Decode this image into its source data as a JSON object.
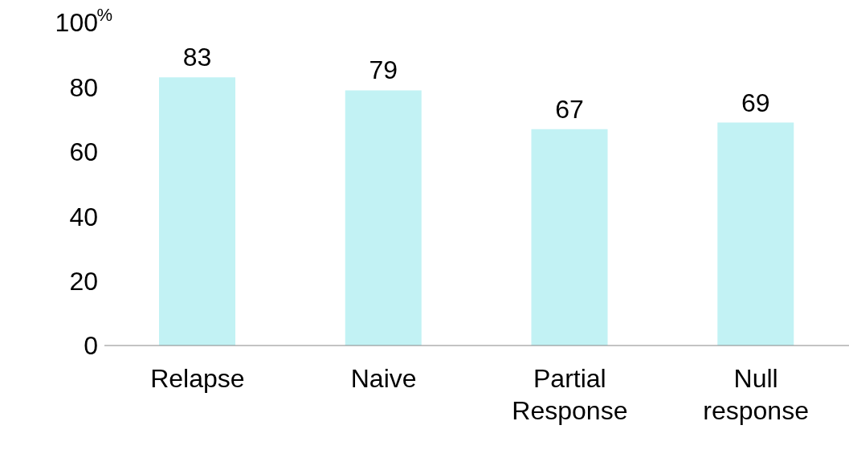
{
  "chart_data": {
    "type": "bar",
    "ylabel": "%",
    "categories": [
      "Relapse",
      "Naive",
      "Partial Response",
      "Null response"
    ],
    "values": [
      83,
      79,
      67,
      69
    ],
    "color": "#c2f2f4",
    "ylim": [
      0,
      100
    ],
    "yticks": [
      0,
      20,
      40,
      60,
      80,
      100
    ],
    "grid": false,
    "data_labels": true
  }
}
